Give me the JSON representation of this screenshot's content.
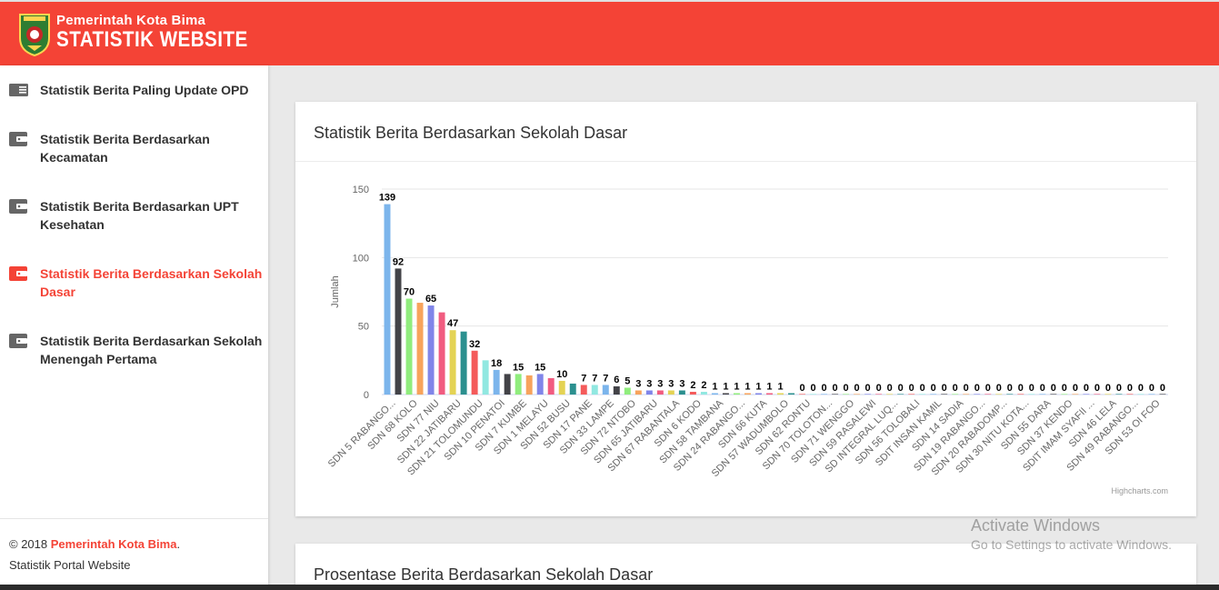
{
  "header": {
    "brand_small": "Pemerintah Kota Bima",
    "brand_big": "STATISTIK WEBSITE",
    "color": "#f44336"
  },
  "sidebar": {
    "items": [
      {
        "label": "Statistik Berita Paling Update OPD",
        "icon": "newspaper-icon",
        "active": false
      },
      {
        "label": "Statistik Berita Berdasarkan Kecamatan",
        "icon": "wallet-icon",
        "active": false
      },
      {
        "label": "Statistik Berita Berdasarkan UPT Kesehatan",
        "icon": "wallet-icon",
        "active": false
      },
      {
        "label": "Statistik Berita Berdasarkan Sekolah Dasar",
        "icon": "wallet-icon",
        "active": true
      },
      {
        "label": "Statistik Berita Berdasarkan Sekolah Menengah Pertama",
        "icon": "wallet-icon",
        "active": false
      }
    ],
    "footer": {
      "copyright": "© 2018 ",
      "org": "Pemerintah Kota Bima",
      "dot": ".",
      "subtitle": "Statistik Portal Website"
    }
  },
  "main": {
    "card1_title": "Statistik Berita Berdasarkan Sekolah Dasar",
    "card2_title": "Prosentase Berita Berdasarkan Sekolah Dasar"
  },
  "chart_data": {
    "type": "bar",
    "title": "",
    "xlabel": "",
    "ylabel": "Jumlah",
    "ylim": [
      0,
      150
    ],
    "yticks": [
      0,
      50,
      100,
      150
    ],
    "credits": "Highcharts.com",
    "grid": true,
    "legend": "none",
    "visible_category_labels": [
      "SDN 5 RABANGO...",
      "SDN 68 KOLO",
      "SDN 77 NIU",
      "SDN 22 JATIBARU",
      "SDN 21 TOLOMUNDU",
      "SDN 10 PENATOI",
      "SDN 7 KUMBE",
      "SDN 1 MELAYU",
      "SDN 52 BUSU",
      "SDN 17 PANE",
      "SDN 33 LAMPE",
      "SDN 72 NTOBO",
      "SDN 65 JATIBARU",
      "SDN 67 RABANTALA",
      "SDN 6 KODO",
      "SDN 58 TAMBANA",
      "SDN 24 RABANGO...",
      "SDN 66 KUTA",
      "SDN 57 WADUMBOLO",
      "SDN 62 RONTU",
      "SDN 70 TOLOTON...",
      "SDN 71 WENGGO",
      "SDN 59 RASALEWI",
      "SD INTEGRAL LUQ...",
      "SDN 56 TOLOBALI",
      "SDIT INSAN KAMIL",
      "SDN 14 SADIA",
      "SDN 19 RABANGO...",
      "SDN 20 RABADOMP...",
      "SDN 30 NITU KOTA...",
      "SDN 55 DARA",
      "SDN 37 KENDO",
      "SDIT IMAM SYAFII ...",
      "SDN 46 LELA",
      "SDN 49 RABANGO...",
      "SDN 53 OI FOO"
    ],
    "values": [
      139,
      92,
      70,
      67,
      65,
      60,
      47,
      46,
      32,
      25,
      18,
      15,
      15,
      14,
      15,
      12,
      10,
      8,
      7,
      7,
      7,
      6,
      5,
      3,
      3,
      3,
      3,
      3,
      2,
      2,
      1,
      1,
      1,
      1,
      1,
      1,
      1,
      1,
      0,
      0,
      0,
      0,
      0,
      0,
      0,
      0,
      0,
      0,
      0,
      0,
      0,
      0,
      0,
      0,
      0,
      0,
      0,
      0,
      0,
      0,
      0,
      0,
      0,
      0,
      0,
      0,
      0,
      0,
      0,
      0,
      0,
      0
    ],
    "data_labels": [
      "139",
      "92",
      "70",
      "",
      "65",
      "",
      "47",
      "",
      "32",
      "",
      "18",
      "",
      "15",
      "",
      "15",
      "",
      "10",
      "",
      "7",
      "7",
      "7",
      "6",
      "5",
      "3",
      "3",
      "3",
      "3",
      "3",
      "2",
      "2",
      "1",
      "1",
      "1",
      "1",
      "1",
      "1",
      "1",
      "",
      "0",
      "0",
      "0",
      "0",
      "0",
      "0",
      "0",
      "0",
      "0",
      "0",
      "0",
      "0",
      "0",
      "0",
      "0",
      "0",
      "0",
      "0",
      "0",
      "0",
      "0",
      "0",
      "0",
      "0",
      "0",
      "0",
      "0",
      "0",
      "0",
      "0",
      "0",
      "0",
      "0",
      "0"
    ],
    "colors": [
      "#7cb5ec",
      "#434348",
      "#90ed7d",
      "#f7a35c",
      "#8085e9",
      "#f15c80",
      "#e4d354",
      "#2b908f",
      "#f45b5b",
      "#91e8e1"
    ]
  },
  "overlay": {
    "activate_title": "Activate Windows",
    "activate_sub": "Go to Settings to activate Windows."
  }
}
